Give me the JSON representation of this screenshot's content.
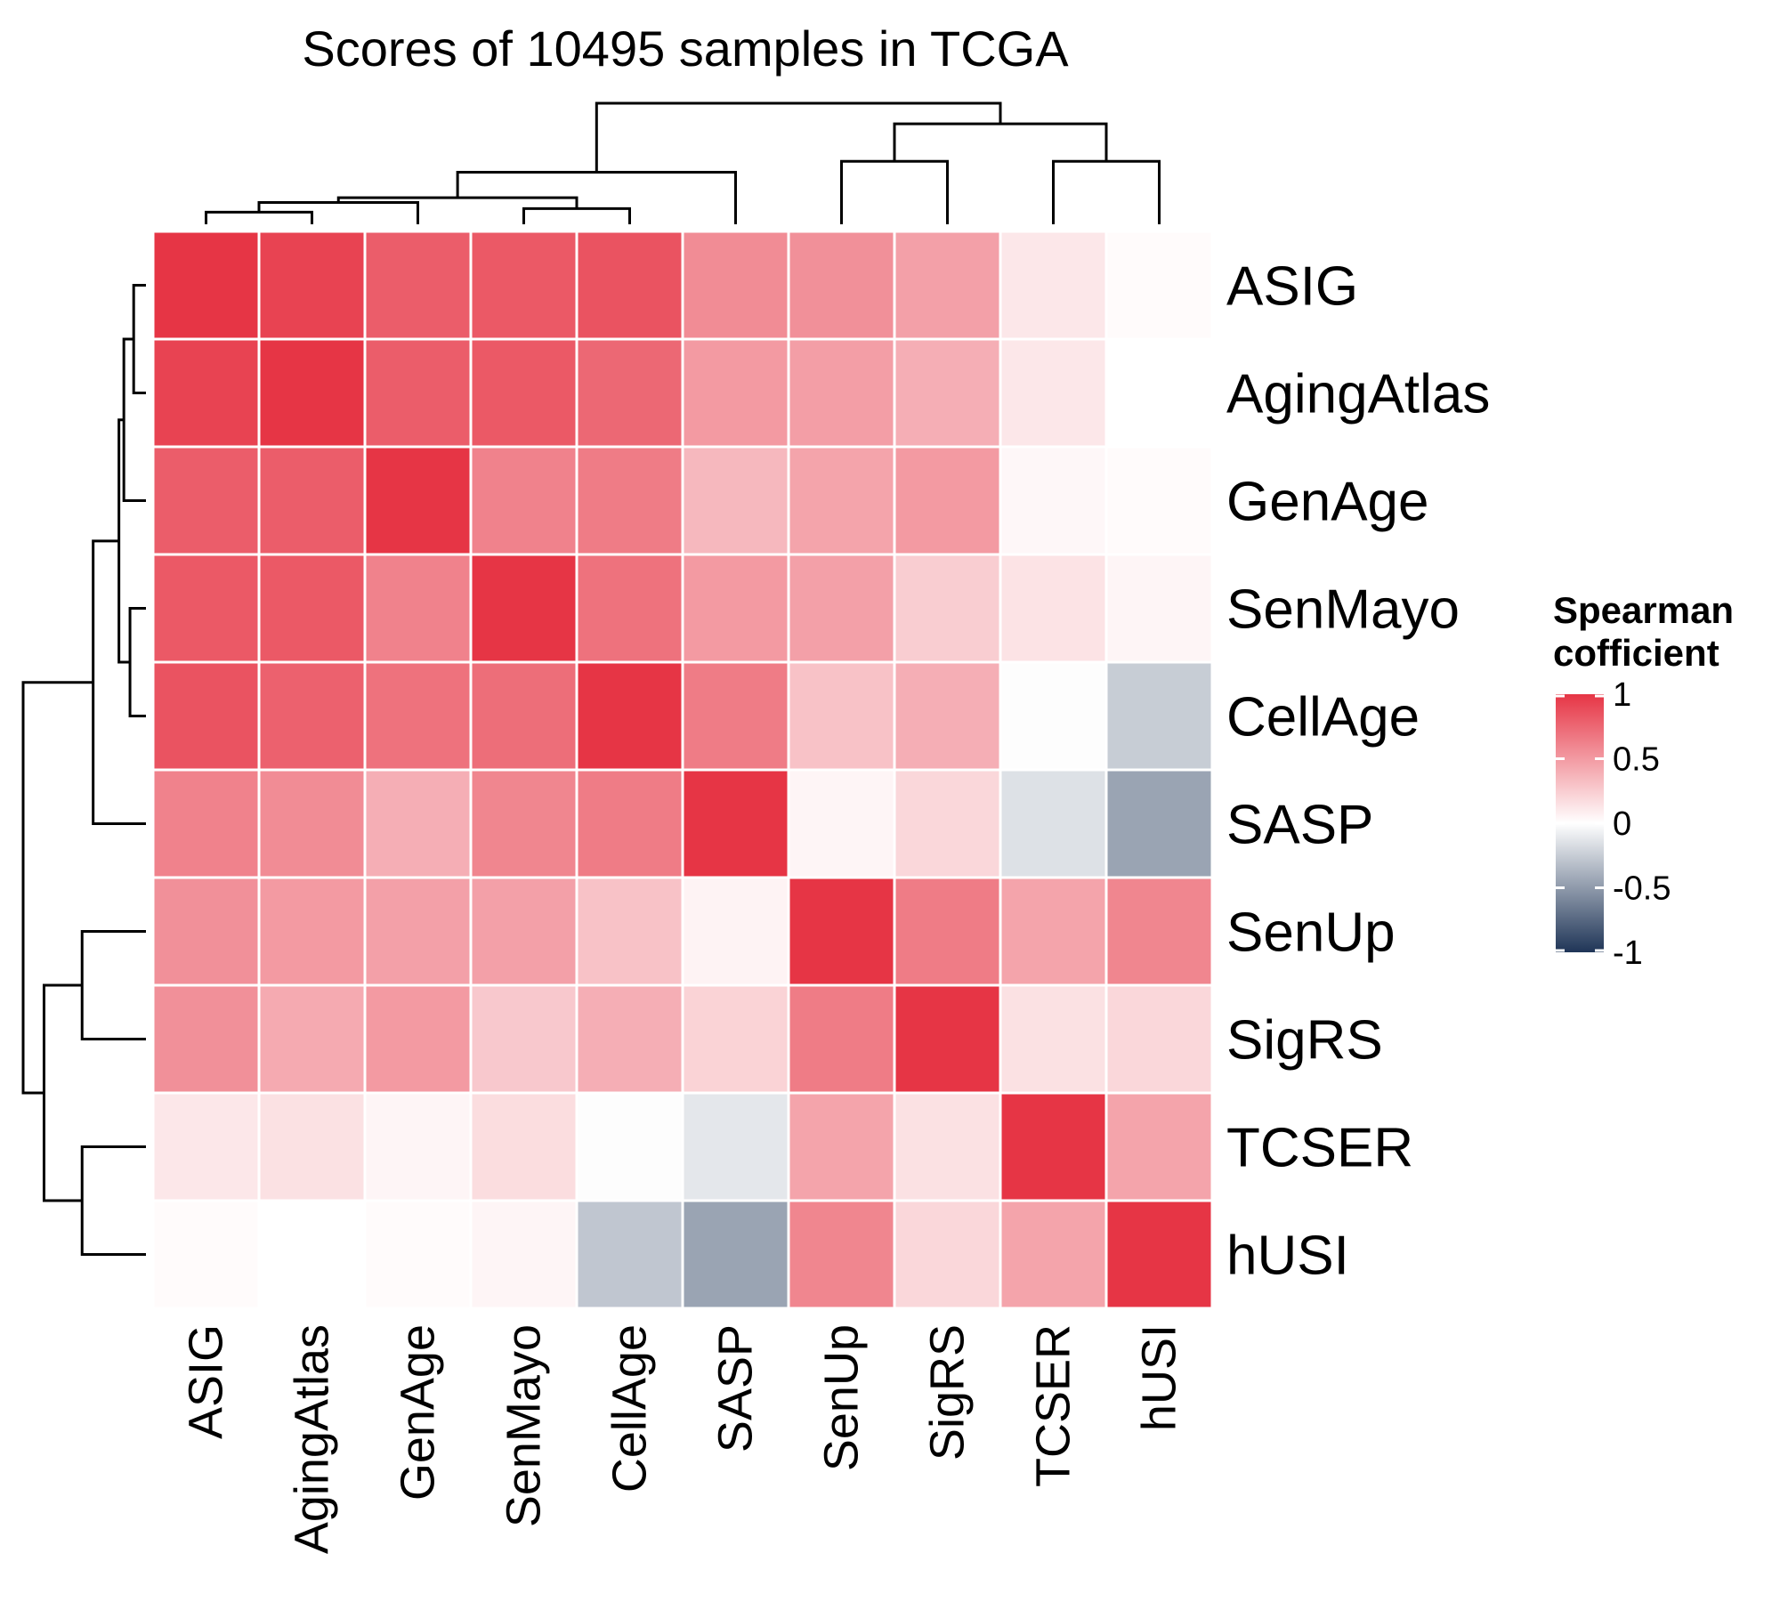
{
  "chart_data": {
    "type": "heatmap",
    "title": "Scores of 10495 samples in TCGA",
    "rows": [
      "ASIG",
      "AgingAtlas",
      "GenAge",
      "SenMayo",
      "CellAge",
      "SASP",
      "SenUp",
      "SigRS",
      "TCSER",
      "hUSI"
    ],
    "columns": [
      "ASIG",
      "AgingAtlas",
      "GenAge",
      "SenMayo",
      "CellAge",
      "SASP",
      "SenUp",
      "SigRS",
      "TCSER",
      "hUSI"
    ],
    "values": [
      [
        1.0,
        0.93,
        0.8,
        0.82,
        0.85,
        0.57,
        0.55,
        0.47,
        0.12,
        0.02
      ],
      [
        0.93,
        1.0,
        0.8,
        0.82,
        0.75,
        0.5,
        0.48,
        0.4,
        0.12,
        0.0
      ],
      [
        0.8,
        0.8,
        1.0,
        0.62,
        0.65,
        0.35,
        0.45,
        0.5,
        0.04,
        0.02
      ],
      [
        0.82,
        0.82,
        0.62,
        1.0,
        0.7,
        0.5,
        0.47,
        0.25,
        0.14,
        0.05
      ],
      [
        0.85,
        0.78,
        0.7,
        0.72,
        1.0,
        0.65,
        0.3,
        0.4,
        -0.01,
        -0.25
      ],
      [
        0.62,
        0.57,
        0.4,
        0.6,
        0.65,
        1.0,
        0.05,
        0.2,
        -0.15,
        -0.45
      ],
      [
        0.55,
        0.5,
        0.47,
        0.47,
        0.3,
        0.06,
        1.0,
        0.65,
        0.45,
        0.6
      ],
      [
        0.55,
        0.42,
        0.5,
        0.27,
        0.4,
        0.22,
        0.65,
        1.0,
        0.15,
        0.2
      ],
      [
        0.12,
        0.15,
        0.05,
        0.17,
        -0.01,
        -0.12,
        0.45,
        0.15,
        1.0,
        0.45
      ],
      [
        0.02,
        0.0,
        0.02,
        0.05,
        -0.28,
        -0.45,
        0.6,
        0.2,
        0.45,
        1.0
      ]
    ],
    "color_scale": {
      "min": -1,
      "mid": 0,
      "max": 1,
      "low_color": "#1f3557",
      "mid_color": "#ffffff",
      "high_color": "#e63545"
    },
    "legend": {
      "title_line1": "Spearman",
      "title_line2": "cofficient",
      "ticks": [
        1,
        0.5,
        0,
        -0.5,
        -1
      ],
      "placement": "right"
    },
    "row_dendrogram": true,
    "column_dendrogram": true
  }
}
